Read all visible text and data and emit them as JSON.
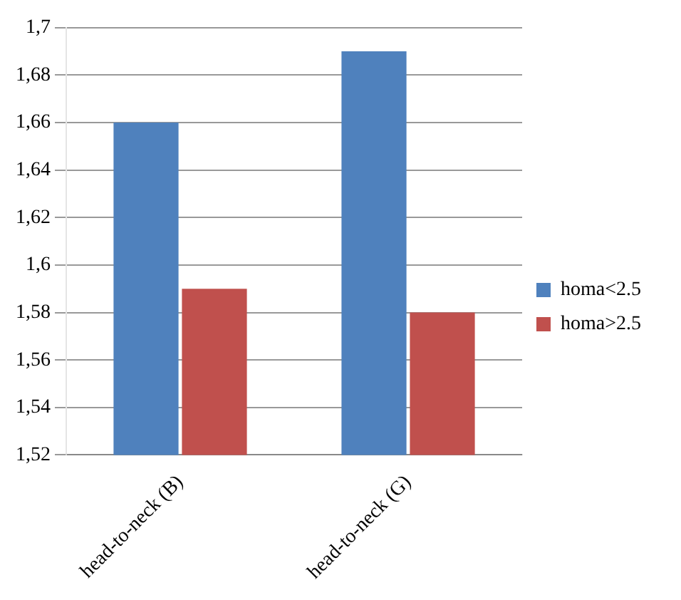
{
  "chart_data": {
    "type": "bar",
    "categories": [
      "head-to-neck (B)",
      "head-to-neck (G)"
    ],
    "series": [
      {
        "name": "homa<2.5",
        "color": "#4f81bd",
        "values": [
          1.66,
          1.69
        ]
      },
      {
        "name": "homa>2.5",
        "color": "#c0504d",
        "values": [
          1.59,
          1.58
        ]
      }
    ],
    "ylim": [
      1.52,
      1.7
    ],
    "yticks": [
      {
        "value": 1.52,
        "label": "1,52"
      },
      {
        "value": 1.54,
        "label": "1,54"
      },
      {
        "value": 1.56,
        "label": "1,56"
      },
      {
        "value": 1.58,
        "label": "1,58"
      },
      {
        "value": 1.6,
        "label": "1,6"
      },
      {
        "value": 1.62,
        "label": "1,62"
      },
      {
        "value": 1.64,
        "label": "1,64"
      },
      {
        "value": 1.66,
        "label": "1,66"
      },
      {
        "value": 1.68,
        "label": "1,68"
      },
      {
        "value": 1.7,
        "label": "1,7"
      }
    ],
    "grid": "y",
    "legend": "right"
  }
}
